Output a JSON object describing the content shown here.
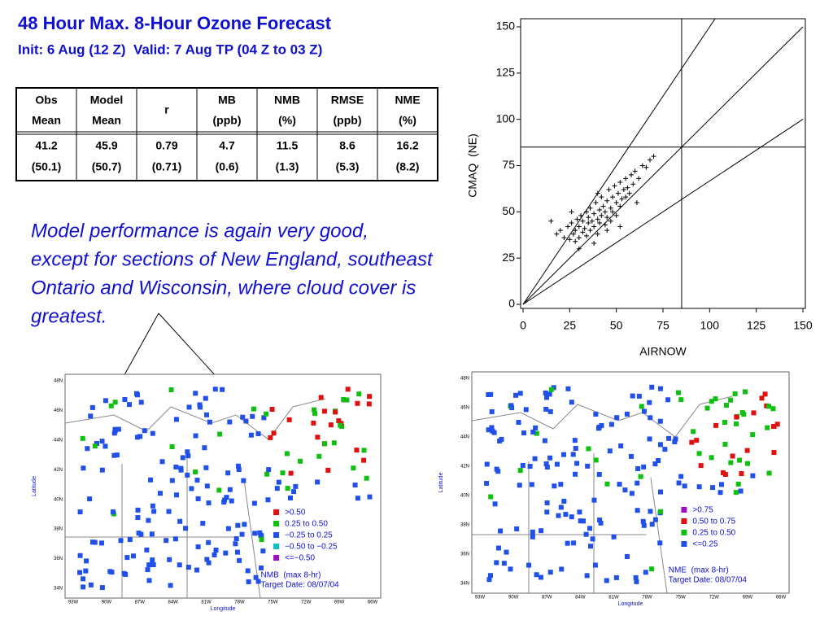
{
  "header": {
    "title": "48 Hour Max. 8-Hour Ozone Forecast",
    "subtitle": "Init: 6 Aug (12 Z)  Valid: 7 Aug TP (04 Z to 03 Z)"
  },
  "table": {
    "header": [
      [
        "Obs",
        "Mean"
      ],
      [
        "Model",
        "Mean"
      ],
      [
        "r"
      ],
      [
        "MB",
        "(ppb)"
      ],
      [
        "NMB",
        "(%)"
      ],
      [
        "RMSE",
        "(ppb)"
      ],
      [
        "NME",
        "(%)"
      ]
    ],
    "rows": [
      [
        [
          41.2,
          "(50.1)"
        ],
        [
          45.9,
          "(50.7)"
        ],
        [
          0.79,
          "(0.71)"
        ],
        [
          4.7,
          "(0.6)"
        ],
        [
          11.5,
          "(1.3)"
        ],
        [
          8.6,
          "(5.3)"
        ],
        [
          16.2,
          "(8.2)"
        ]
      ]
    ]
  },
  "text": {
    "paragraph": [
      "Model performance is again very good,",
      "except for sections of New England, southeast",
      "Ontario and Wisconsin, where cloud cover is",
      "greatest."
    ]
  },
  "chart_data": {
    "type": "scatter",
    "xlabel": "AIRNOW",
    "ylabel": "CMAQ  (NE)",
    "color": "#000000",
    "x": [
      15,
      18,
      20,
      22,
      24,
      25,
      26,
      27,
      28,
      28,
      29,
      30,
      30,
      31,
      32,
      32,
      33,
      34,
      34,
      35,
      35,
      36,
      36,
      37,
      38,
      38,
      39,
      40,
      40,
      41,
      41,
      42,
      42,
      43,
      44,
      44,
      45,
      45,
      46,
      47,
      47,
      48,
      48,
      49,
      50,
      50,
      51,
      52,
      52,
      53,
      54,
      55,
      55,
      56,
      57,
      58,
      59,
      60,
      62,
      64,
      66,
      68,
      70,
      45,
      38,
      30,
      26,
      40,
      52,
      61
    ],
    "y": [
      45,
      38,
      40,
      36,
      42,
      35,
      44,
      38,
      40,
      34,
      46,
      42,
      36,
      48,
      39,
      45,
      41,
      50,
      37,
      44,
      47,
      40,
      52,
      45,
      49,
      42,
      55,
      46,
      38,
      51,
      44,
      58,
      48,
      53,
      43,
      50,
      56,
      47,
      62,
      52,
      45,
      58,
      50,
      64,
      55,
      48,
      60,
      53,
      66,
      57,
      62,
      58,
      68,
      63,
      60,
      70,
      65,
      72,
      68,
      75,
      74,
      78,
      80,
      40,
      33,
      30,
      50,
      60,
      42,
      55
    ],
    "xlim": [
      0,
      150
    ],
    "ylim": [
      0,
      150
    ],
    "xticks": [
      0,
      25,
      50,
      75,
      100,
      125,
      150
    ],
    "yticks": [
      0,
      25,
      50,
      75,
      100,
      125,
      150
    ],
    "threshold": 85,
    "ratio_lines": [
      1.5,
      1,
      0.667
    ]
  },
  "maps": [
    {
      "legend": [
        {
          "label": ">0.50",
          "color": "#e01010"
        },
        {
          "label": "0.25 to 0.50",
          "color": "#10c010"
        },
        {
          "label": "−0.25 to 0.25",
          "color": "#2050e8"
        },
        {
          "label": "−0.50 to −0.25",
          "color": "#10c0c0"
        },
        {
          "label": "<=−0.50",
          "color": "#a010c0"
        }
      ],
      "caption": [
        "NMB  (max 8-hr)",
        "Target Date: 08/07/04"
      ],
      "ylabel": "Latitude",
      "xlabel": "Longitude",
      "lat_ticks": [
        "48N",
        "46N",
        "44N",
        "42N",
        "40N",
        "38N",
        "36N",
        "34N"
      ],
      "lon_ticks": [
        "93W",
        "90W",
        "87W",
        "84W",
        "81W",
        "78W",
        "75W",
        "72W",
        "69W",
        "66W"
      ]
    },
    {
      "legend": [
        {
          "label": ">0.75",
          "color": "#a010c0"
        },
        {
          "label": "0.50 to 0.75",
          "color": "#e01010"
        },
        {
          "label": "0.25 to 0.50",
          "color": "#10c010"
        },
        {
          "label": "<=0.25",
          "color": "#2050e8"
        }
      ],
      "caption": [
        "NME  (max 8-hr)",
        "Target Date: 08/07/04"
      ],
      "ylabel": "Latitude",
      "xlabel": "Longitude",
      "lat_ticks": [
        "48N",
        "46N",
        "44N",
        "42N",
        "40N",
        "38N",
        "36N",
        "34N"
      ],
      "lon_ticks": [
        "93W",
        "90W",
        "87W",
        "84W",
        "81W",
        "78W",
        "75W",
        "72W",
        "69W",
        "66W"
      ]
    }
  ]
}
